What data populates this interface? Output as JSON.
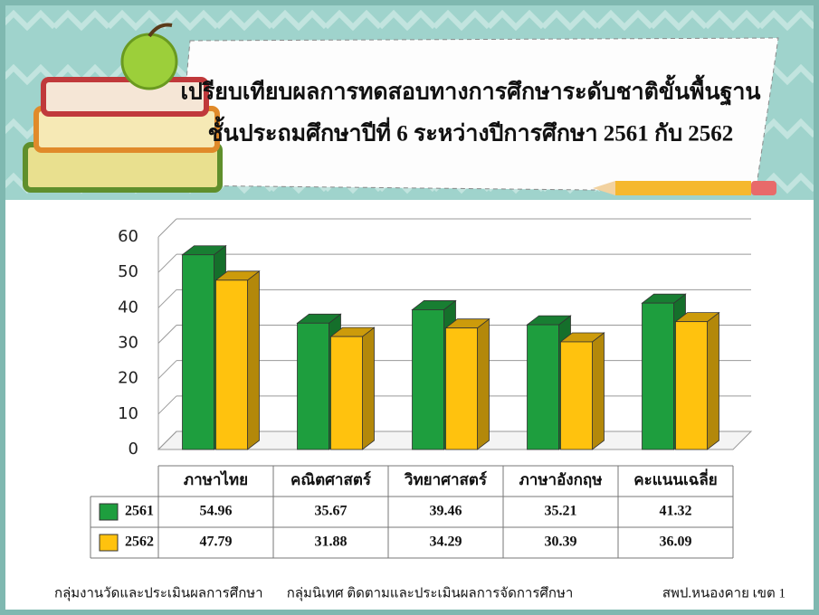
{
  "chart_data": {
    "type": "bar",
    "title": "เปรียบเทียบผลการทดสอบทางการศึกษาระดับชาติขั้นพื้นฐาน",
    "subtitle": "ชั้นประถมศึกษาปีที่ 6 ระหว่างปีการศึกษา 2561 กับ 2562",
    "categories": [
      "ภาษาไทย",
      "คณิตศาสตร์",
      "วิทยาศาสตร์",
      "ภาษาอังกฤษ",
      "คะแนนเฉลี่ย"
    ],
    "series": [
      {
        "name": "2561",
        "color": "#1e9e3e",
        "values": [
          54.96,
          35.67,
          39.46,
          35.21,
          41.32
        ]
      },
      {
        "name": "2562",
        "color": "#ffc20e",
        "values": [
          47.79,
          31.88,
          34.29,
          30.39,
          36.09
        ]
      }
    ],
    "ylim": [
      0,
      60
    ],
    "yticks": [
      0,
      10,
      20,
      30,
      40,
      50,
      60
    ],
    "grid": true,
    "footer": [
      "กลุ่มงานวัดและประเมินผลการศึกษา",
      "กลุ่มนิเทศ ติดตามและประเมินผลการจัดการศึกษา",
      "สพป.หนองคาย เขต 1"
    ]
  }
}
